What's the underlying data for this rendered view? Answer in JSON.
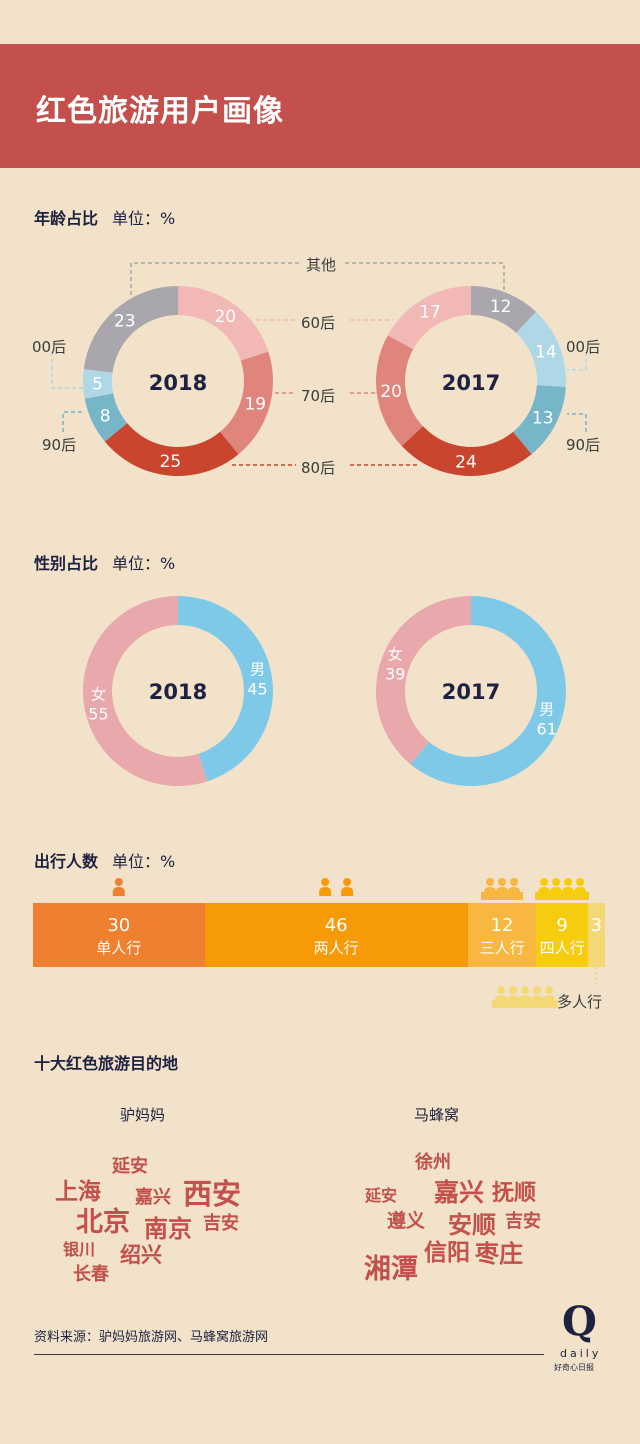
{
  "header": {
    "title": "红色旅游用户画像"
  },
  "sections": {
    "age": {
      "title": "年龄占比",
      "unit": "单位：%"
    },
    "gender": {
      "title": "性别占比",
      "unit": "单位：%"
    },
    "party": {
      "title": "出行人数",
      "unit": "单位：%"
    },
    "dest": {
      "title": "十大红色旅游目的地"
    }
  },
  "labels": {
    "other": "其他",
    "gen60": "60后",
    "gen70": "70后",
    "gen80": "80后",
    "gen00": "00后",
    "gen90": "90后"
  },
  "colors": {
    "other": "#a9a7ad",
    "gen60": "#f1b8b6",
    "gen70": "#e0857c",
    "gen80": "#c9452e",
    "gen90": "#77b5c9",
    "gen00": "#aed8e6",
    "male": "#7fc9e8",
    "female": "#e8a8ac",
    "single": "#ee8030",
    "two": "#f79a08",
    "three": "#f7b740",
    "four": "#f5cd0e",
    "multi": "#f4d876"
  },
  "chart_data": [
    {
      "type": "pie",
      "title": "2018",
      "categories": [
        "60后",
        "70后",
        "80后",
        "90后",
        "00后",
        "其他"
      ],
      "values": [
        20,
        19,
        25,
        8,
        5,
        23
      ]
    },
    {
      "type": "pie",
      "title": "2017",
      "categories": [
        "其他",
        "00后",
        "90后",
        "80后",
        "70后",
        "60后"
      ],
      "values": [
        12,
        14,
        13,
        24,
        20,
        17
      ]
    },
    {
      "type": "pie",
      "title": "2018",
      "categories": [
        "男",
        "女"
      ],
      "values": [
        45,
        55
      ]
    },
    {
      "type": "pie",
      "title": "2017",
      "categories": [
        "男",
        "女"
      ],
      "values": [
        61,
        39
      ]
    },
    {
      "type": "bar",
      "categories": [
        "单人行",
        "两人行",
        "三人行",
        "四人行",
        "多人行"
      ],
      "values": [
        30,
        46,
        12,
        9,
        3
      ]
    }
  ],
  "destinations": {
    "lvmama": {
      "title": "驴妈妈",
      "words": [
        "延安",
        "上海",
        "嘉兴",
        "西安",
        "北京",
        "南京",
        "吉安",
        "银川",
        "绍兴",
        "长春"
      ]
    },
    "mafengwo": {
      "title": "马蜂窝",
      "words": [
        "徐州",
        "延安",
        "嘉兴",
        "抚顺",
        "遵义",
        "安顺",
        "吉安",
        "湘潭",
        "信阳",
        "枣庄"
      ]
    }
  },
  "footer": {
    "source": "资料来源：驴妈妈旅游网、马蜂窝旅游网",
    "logo": "Q",
    "logo_sub": "daily",
    "logo_cn": "好奇心日报"
  }
}
